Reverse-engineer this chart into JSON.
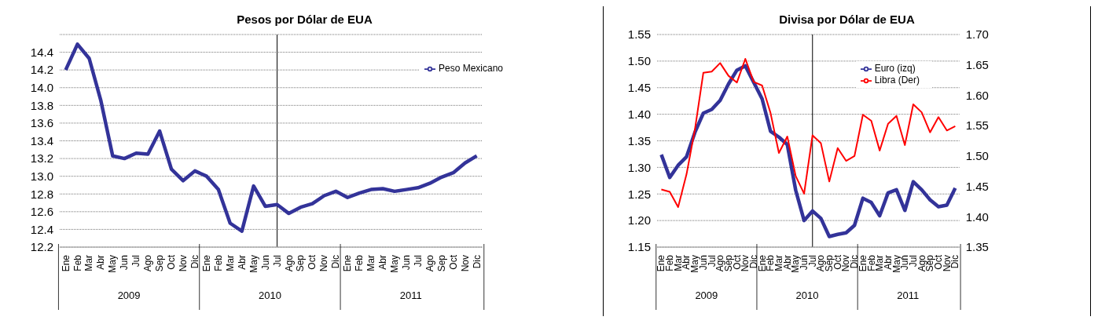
{
  "chart_data": [
    {
      "type": "line",
      "title": "Pesos por Dólar de EUA",
      "x": [
        "2009-01",
        "2009-02",
        "2009-03",
        "2009-04",
        "2009-05",
        "2009-06",
        "2009-07",
        "2009-08",
        "2009-09",
        "2009-10",
        "2009-11",
        "2009-12",
        "2010-01",
        "2010-02",
        "2010-03",
        "2010-04",
        "2010-05",
        "2010-06",
        "2010-07",
        "2010-08",
        "2010-09",
        "2010-10",
        "2010-11",
        "2010-12",
        "2011-01",
        "2011-02",
        "2011-03",
        "2011-04",
        "2011-05",
        "2011-06",
        "2011-07",
        "2011-08",
        "2011-09",
        "2011-10",
        "2011-11",
        "2011-12"
      ],
      "xlim": [
        "2008-12-16",
        "2011-12-16"
      ],
      "xticks": [
        {
          "value": "2009-01",
          "label": "Ene"
        },
        {
          "value": "2009-02",
          "label": "Feb"
        },
        {
          "value": "2009-03",
          "label": "Mar"
        },
        {
          "value": "2009-04",
          "label": "Abr"
        },
        {
          "value": "2009-05",
          "label": "May"
        },
        {
          "value": "2009-06",
          "label": "Jun"
        },
        {
          "value": "2009-07",
          "label": "Jul"
        },
        {
          "value": "2009-08",
          "label": "Ago"
        },
        {
          "value": "2009-09",
          "label": "Sep"
        },
        {
          "value": "2009-10",
          "label": "Oct"
        },
        {
          "value": "2009-11",
          "label": "Nov"
        },
        {
          "value": "2009-12",
          "label": "Dic"
        },
        {
          "value": "2010-01",
          "label": "Ene"
        },
        {
          "value": "2010-02",
          "label": "Feb"
        },
        {
          "value": "2010-03",
          "label": "Mar"
        },
        {
          "value": "2010-04",
          "label": "Abr"
        },
        {
          "value": "2010-05",
          "label": "May"
        },
        {
          "value": "2010-06",
          "label": "Jun"
        },
        {
          "value": "2010-07",
          "label": "Jul"
        },
        {
          "value": "2010-08",
          "label": "Ago"
        },
        {
          "value": "2010-09",
          "label": "Sep"
        },
        {
          "value": "2010-10",
          "label": "Oct"
        },
        {
          "value": "2010-11",
          "label": "Nov"
        },
        {
          "value": "2010-12",
          "label": "Dic"
        },
        {
          "value": "2011-01",
          "label": "Ene"
        },
        {
          "value": "2011-02",
          "label": "Feb"
        },
        {
          "value": "2011-03",
          "label": "Mar"
        },
        {
          "value": "2011-04",
          "label": "Abr"
        },
        {
          "value": "2011-05",
          "label": "May"
        },
        {
          "value": "2011-06",
          "label": "Jun"
        },
        {
          "value": "2011-07",
          "label": "Jul"
        },
        {
          "value": "2011-08",
          "label": "Ago"
        },
        {
          "value": "2011-09",
          "label": "Sep"
        },
        {
          "value": "2011-10",
          "label": "Oct"
        },
        {
          "value": "2011-11",
          "label": "Nov"
        },
        {
          "value": "2011-12",
          "label": "Dic"
        }
      ],
      "series": [
        {
          "name": "Peso Mexicano",
          "color": "#333399",
          "values": [
            14.2,
            14.49,
            14.33,
            13.85,
            13.23,
            13.2,
            13.26,
            13.25,
            13.51,
            13.08,
            12.95,
            13.06,
            13.0,
            12.85,
            12.47,
            12.38,
            12.89,
            12.66,
            12.68,
            12.58,
            12.65,
            12.69,
            12.78,
            12.83,
            12.76,
            12.81,
            12.85,
            12.86,
            12.83,
            12.85,
            12.87,
            12.92,
            12.99,
            13.04,
            13.15,
            13.23
          ]
        }
      ],
      "ylim": [
        12.2,
        14.6
      ],
      "yticks": [
        12.2,
        12.4,
        12.6,
        12.8,
        {
          "value": 13,
          "label": "13.0"
        },
        13.2,
        13.4,
        13.6,
        13.8,
        {
          "value": 14,
          "label": "14.0"
        },
        14.2,
        14.4
      ],
      "ref_lines": [
        {
          "axis": "x",
          "value": "2010-07",
          "color": "#000000"
        }
      ],
      "annotations": [
        "2009",
        "2010",
        "2011"
      ],
      "grid": "y",
      "legend": "top right",
      "marker": "none",
      "line_style": "solid"
    },
    {
      "type": "line",
      "title": "Divisa por Dólar de EUA",
      "x": [
        "2009-01",
        "2009-02",
        "2009-03",
        "2009-04",
        "2009-05",
        "2009-06",
        "2009-07",
        "2009-08",
        "2009-09",
        "2009-10",
        "2009-11",
        "2009-12",
        "2010-01",
        "2010-02",
        "2010-03",
        "2010-04",
        "2010-05",
        "2010-06",
        "2010-07",
        "2010-08",
        "2010-09",
        "2010-10",
        "2010-11",
        "2010-12",
        "2011-01",
        "2011-02",
        "2011-03",
        "2011-04",
        "2011-05",
        "2011-06",
        "2011-07",
        "2011-08",
        "2011-09",
        "2011-10",
        "2011-11",
        "2011-12"
      ],
      "xlim": [
        "2008-12-16",
        "2011-12-16"
      ],
      "xticks": [
        {
          "value": "2009-01",
          "label": "Ene"
        },
        {
          "value": "2009-02",
          "label": "Feb"
        },
        {
          "value": "2009-03",
          "label": "Mar"
        },
        {
          "value": "2009-04",
          "label": "Abr"
        },
        {
          "value": "2009-05",
          "label": "May"
        },
        {
          "value": "2009-06",
          "label": "Jun"
        },
        {
          "value": "2009-07",
          "label": "Jul"
        },
        {
          "value": "2009-08",
          "label": "Ago"
        },
        {
          "value": "2009-09",
          "label": "Sep"
        },
        {
          "value": "2009-10",
          "label": "Oct"
        },
        {
          "value": "2009-11",
          "label": "Nov"
        },
        {
          "value": "2009-12",
          "label": "Dic"
        },
        {
          "value": "2010-01",
          "label": "Ene"
        },
        {
          "value": "2010-02",
          "label": "Feb"
        },
        {
          "value": "2010-03",
          "label": "Mar"
        },
        {
          "value": "2010-04",
          "label": "Abr"
        },
        {
          "value": "2010-05",
          "label": "May"
        },
        {
          "value": "2010-06",
          "label": "Jun"
        },
        {
          "value": "2010-07",
          "label": "Jul"
        },
        {
          "value": "2010-08",
          "label": "Ago"
        },
        {
          "value": "2010-09",
          "label": "Sep"
        },
        {
          "value": "2010-10",
          "label": "Oct"
        },
        {
          "value": "2010-11",
          "label": "Nov"
        },
        {
          "value": "2010-12",
          "label": "Dic"
        },
        {
          "value": "2011-01",
          "label": "Ene"
        },
        {
          "value": "2011-02",
          "label": "Feb"
        },
        {
          "value": "2011-03",
          "label": "Mar"
        },
        {
          "value": "2011-04",
          "label": "Abr"
        },
        {
          "value": "2011-05",
          "label": "May"
        },
        {
          "value": "2011-06",
          "label": "Jun"
        },
        {
          "value": "2011-07",
          "label": "Jul"
        },
        {
          "value": "2011-08",
          "label": "Ago"
        },
        {
          "value": "2011-09",
          "label": "Sep"
        },
        {
          "value": "2011-10",
          "label": "Oct"
        },
        {
          "value": "2011-11",
          "label": "Nov"
        },
        {
          "value": "2011-12",
          "label": "Dic"
        }
      ],
      "series": [
        {
          "name": "Euro (izq)",
          "color": "#333399",
          "values": [
            1.324,
            1.281,
            1.304,
            1.32,
            1.366,
            1.402,
            1.409,
            1.426,
            1.457,
            1.483,
            1.491,
            1.46,
            1.429,
            1.368,
            1.357,
            1.343,
            1.257,
            1.2,
            1.218,
            1.204,
            1.17,
            1.174,
            1.177,
            1.191,
            1.242,
            1.234,
            1.209,
            1.252,
            1.258,
            1.219,
            1.273,
            1.258,
            1.239,
            1.226,
            1.229,
            1.261
          ]
        },
        {
          "name": "Libra (Der)",
          "color": "#ff0000",
          "axis": "y2",
          "values": [
            1.445,
            1.441,
            1.416,
            1.47,
            1.544,
            1.637,
            1.639,
            1.653,
            1.632,
            1.621,
            1.66,
            1.622,
            1.616,
            1.571,
            1.505,
            1.532,
            1.467,
            1.438,
            1.534,
            1.521,
            1.458,
            1.513,
            1.492,
            1.5,
            1.568,
            1.558,
            1.509,
            1.553,
            1.566,
            1.518,
            1.585,
            1.572,
            1.539,
            1.564,
            1.542,
            1.549
          ]
        }
      ],
      "ylim": [
        1.15,
        1.55
      ],
      "yticks": [
        1.15,
        {
          "value": 1.2,
          "label": "1.20"
        },
        1.25,
        {
          "value": 1.3,
          "label": "1.30"
        },
        1.35,
        {
          "value": 1.4,
          "label": "1.40"
        },
        1.45,
        {
          "value": 1.5,
          "label": "1.50"
        },
        1.55
      ],
      "y2lim": [
        1.35,
        1.7
      ],
      "y2ticks": [
        1.35,
        {
          "value": 1.4,
          "label": "1.40"
        },
        1.45,
        {
          "value": 1.5,
          "label": "1.50"
        },
        1.55,
        {
          "value": 1.6,
          "label": "1.60"
        },
        1.65,
        {
          "value": 1.7,
          "label": "1.70"
        }
      ],
      "ref_lines": [
        {
          "axis": "x",
          "value": "2010-07",
          "color": "#000000"
        }
      ],
      "annotations": [
        "2009",
        "2010",
        "2011"
      ],
      "grid": "y",
      "legend": "top right",
      "marker": "none",
      "line_style": "solid"
    }
  ]
}
